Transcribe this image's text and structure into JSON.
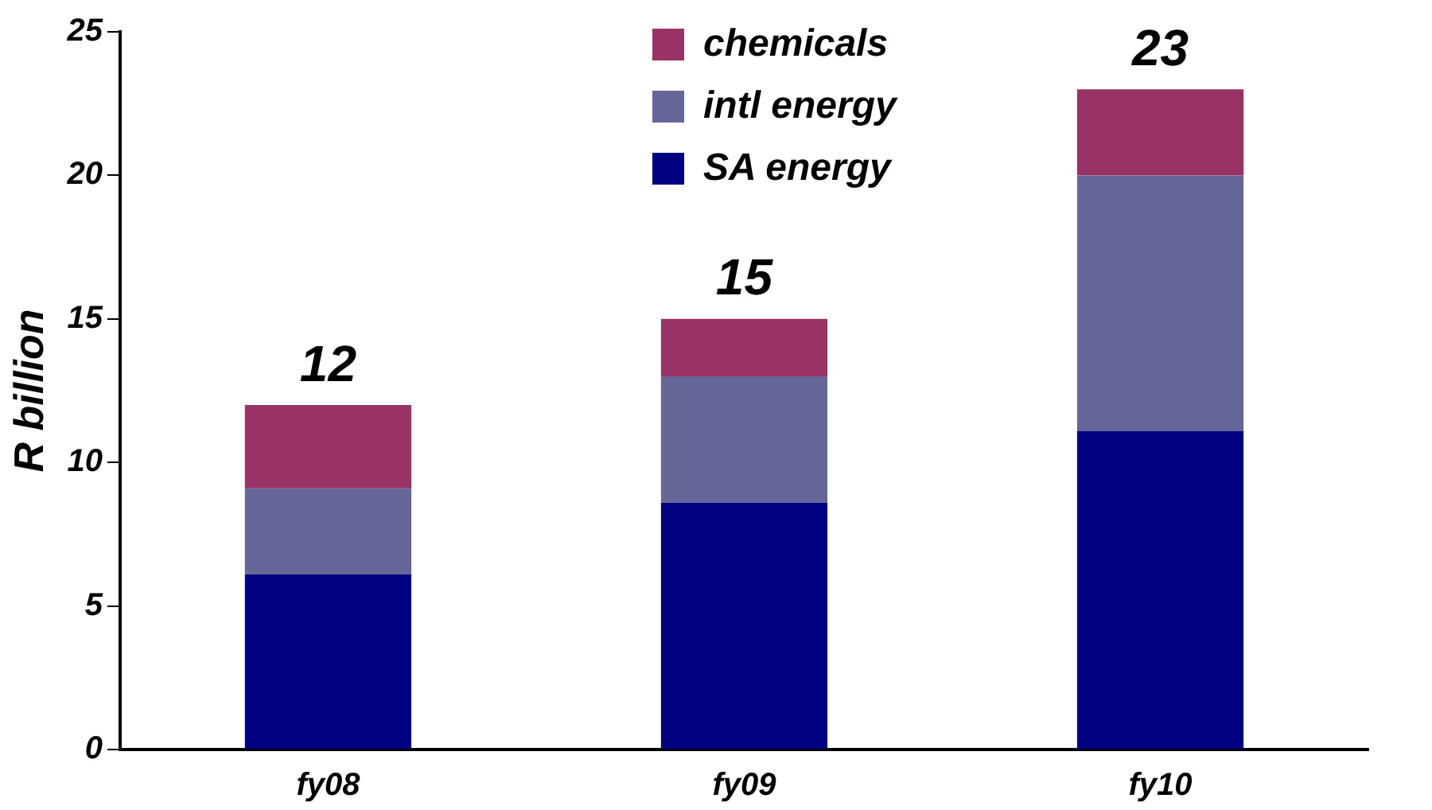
{
  "chart_data": {
    "type": "bar",
    "stacked": true,
    "ylabel": "R billion",
    "categories": [
      "fy08",
      "fy09",
      "fy10"
    ],
    "series": [
      {
        "name": "SA energy",
        "color": "#000080",
        "values": [
          6.1,
          8.6,
          11.1
        ]
      },
      {
        "name": "intl energy",
        "color": "#666699",
        "values": [
          3.0,
          4.4,
          8.9
        ]
      },
      {
        "name": "chemicals",
        "color": "#993366",
        "values": [
          2.9,
          2.0,
          3.0
        ]
      }
    ],
    "ylim": [
      0,
      25
    ],
    "yticks": [
      0,
      5,
      10,
      15,
      20,
      25
    ],
    "grid": false,
    "legend": "top",
    "totals": [
      "12",
      "15",
      "23"
    ]
  }
}
